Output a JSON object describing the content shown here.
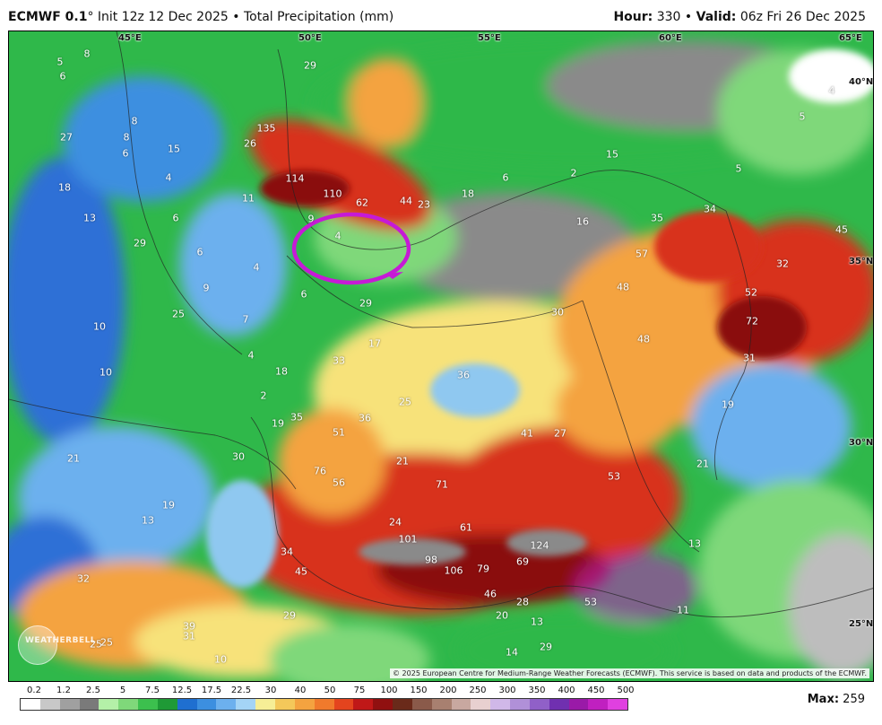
{
  "header": {
    "model": "ECMWF 0.1",
    "degree": "°",
    "init": "Init 12z 12 Dec 2025",
    "bullet": "•",
    "product": "Total Precipitation (mm)",
    "hour_label": "Hour:",
    "hour_value": "330",
    "valid_label": "Valid:",
    "valid_value": "06z Fri 26 Dec 2025"
  },
  "map": {
    "colors": {
      "gray": "#8a8a8a",
      "lightgray": "#bdbdbd",
      "green": "#2fb84a",
      "lightgreen": "#7fd87a",
      "blue": "#2d6fd6",
      "lightblue": "#8fc8f0",
      "yellow": "#f7e27a",
      "orange": "#f4a340",
      "red": "#d8301f",
      "darkred": "#8a1010",
      "magenta": "#c020c0",
      "white": "#ffffff"
    },
    "longitude_labels": [
      "45°E",
      "50°E",
      "55°E",
      "60°E",
      "65°E"
    ],
    "latitude_labels": [
      "40°N",
      "35°N",
      "30°N",
      "25°N"
    ],
    "values": [
      "5",
      "8",
      "6",
      "29",
      "27",
      "8",
      "6",
      "15",
      "26",
      "135",
      "114",
      "110",
      "62",
      "44",
      "23",
      "18",
      "6",
      "2",
      "15",
      "5",
      "4",
      "5",
      "8",
      "18",
      "4",
      "9",
      "13",
      "11",
      "6",
      "16",
      "35",
      "34",
      "45",
      "29",
      "6",
      "9",
      "4",
      "4",
      "57",
      "32",
      "6",
      "29",
      "25",
      "52",
      "72",
      "30",
      "48",
      "10",
      "7",
      "17",
      "48",
      "31",
      "4",
      "33",
      "36",
      "10",
      "18",
      "25",
      "2",
      "19",
      "35",
      "36",
      "51",
      "19",
      "41",
      "27",
      "30",
      "21",
      "53",
      "76",
      "56",
      "71",
      "21",
      "19",
      "21",
      "13",
      "24",
      "101",
      "61",
      "124",
      "13",
      "98",
      "106",
      "79",
      "69",
      "34",
      "32",
      "45",
      "46",
      "28",
      "53",
      "29",
      "11",
      "39",
      "31",
      "10",
      "25",
      "25",
      "20",
      "13",
      "29",
      "14"
    ],
    "annotation": "circled-region",
    "copyright": "© 2025 European Centre for Medium-Range Weather Forecasts (ECMWF). This service is based on data and products of the ECMWF.",
    "logo": "WEATHERBELL"
  },
  "legend": {
    "ticks": [
      "0.2",
      "1.2",
      "2.5",
      "5",
      "7.5",
      "12.5",
      "17.5",
      "22.5",
      "30",
      "40",
      "50",
      "75",
      "100",
      "150",
      "200",
      "250",
      "300",
      "350",
      "400",
      "450",
      "500"
    ],
    "colors": [
      "#ffffff",
      "#c8c8c8",
      "#a0a0a0",
      "#7a7a7a",
      "#b4f0a8",
      "#7fd87a",
      "#3cc04e",
      "#1f9a36",
      "#1f6fd0",
      "#3c8fe0",
      "#6cb0ee",
      "#a4d4f6",
      "#f6ee96",
      "#f4c85a",
      "#f4a340",
      "#f07a2c",
      "#e4441e",
      "#c01818",
      "#901010",
      "#6a2a1a",
      "#8a5a4a",
      "#a88070",
      "#c8a8a0",
      "#e8d0d0",
      "#d0b8e8",
      "#b090d8",
      "#9060c8",
      "#7030b0",
      "#9a1aa8",
      "#c020c0",
      "#e040e0"
    ],
    "max_label": "Max:",
    "max_value": "259"
  }
}
